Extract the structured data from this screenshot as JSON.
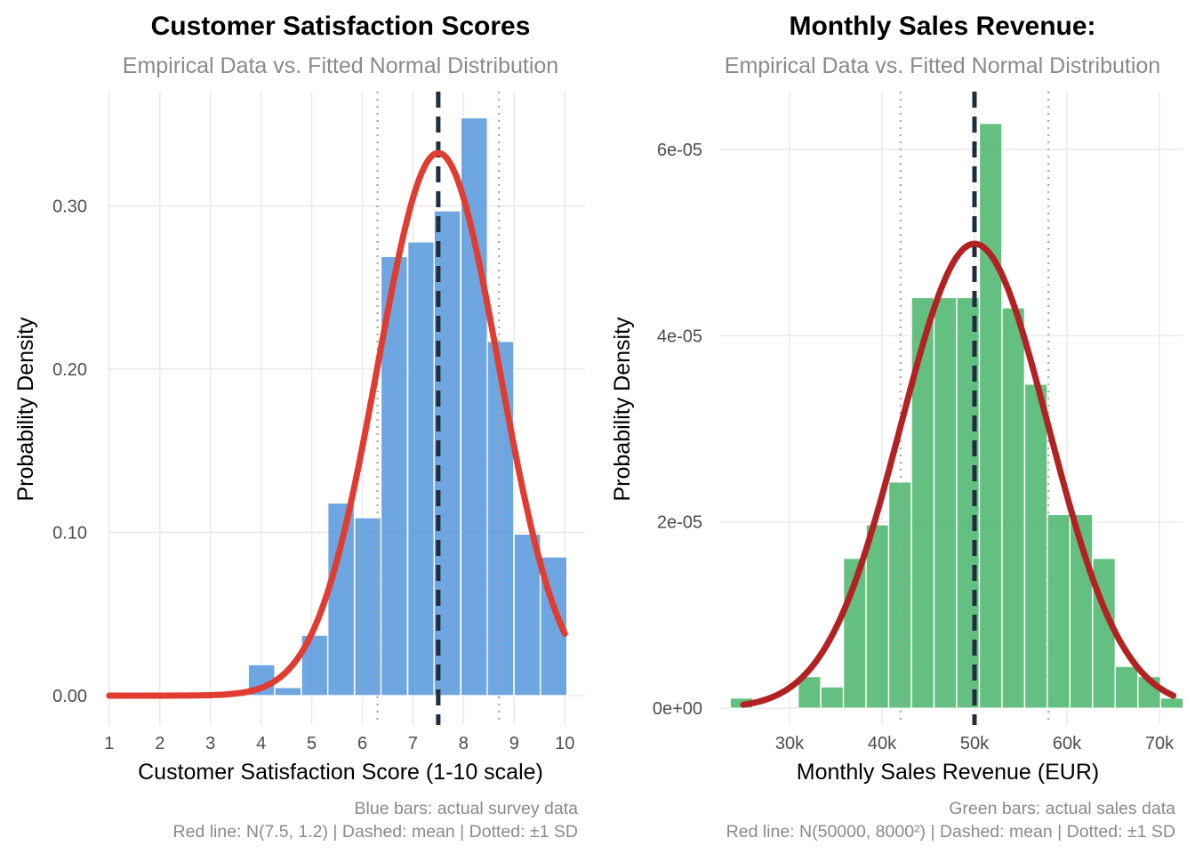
{
  "chart_data": [
    {
      "type": "bar",
      "title": "Customer Satisfaction Scores",
      "subtitle": "Empirical Data vs. Fitted Normal Distribution",
      "xlabel": "Customer Satisfaction Score (1-10 scale)",
      "ylabel": "Probability Density",
      "xlim": [
        0.95,
        10.4
      ],
      "ylim": [
        -0.018,
        0.37
      ],
      "x_ticks": [
        1,
        2,
        3,
        4,
        5,
        6,
        7,
        8,
        9,
        10
      ],
      "x_tick_labels": [
        "1",
        "2",
        "3",
        "4",
        "5",
        "6",
        "7",
        "8",
        "9",
        "10"
      ],
      "y_ticks": [
        0,
        0.1,
        0.2,
        0.3
      ],
      "y_tick_labels": [
        "0.00",
        "0.10",
        "0.20",
        "0.30"
      ],
      "bin_width": 0.525,
      "bar_color": "#4a90d9",
      "curve_color": "#e03c31",
      "bins": [
        {
          "center": 4.01,
          "density": 0.019
        },
        {
          "center": 4.53,
          "density": 0.005
        },
        {
          "center": 5.06,
          "density": 0.037
        },
        {
          "center": 5.58,
          "density": 0.118
        },
        {
          "center": 6.11,
          "density": 0.109
        },
        {
          "center": 6.63,
          "density": 0.269
        },
        {
          "center": 7.16,
          "density": 0.278
        },
        {
          "center": 7.68,
          "density": 0.297
        },
        {
          "center": 8.21,
          "density": 0.354
        },
        {
          "center": 8.73,
          "density": 0.217
        },
        {
          "center": 9.26,
          "density": 0.099
        },
        {
          "center": 9.78,
          "density": 0.085
        }
      ],
      "normal_fit": {
        "mean": 7.5,
        "sd": 1.2,
        "x_from": 1,
        "x_to": 10
      },
      "mean_line": 7.5,
      "sd_lines": [
        6.3,
        8.7
      ],
      "caption": [
        "Blue bars: actual survey data",
        "Red line: N(7.5, 1.2) | Dashed: mean | Dotted: ±1 SD"
      ]
    },
    {
      "type": "bar",
      "title": "Monthly Sales Revenue:",
      "subtitle": "Empirical Data vs. Fitted Normal Distribution",
      "xlabel": "Monthly Sales Revenue (EUR)",
      "ylabel": "Probability Density",
      "xlim": [
        22500,
        72500
      ],
      "ylim": [
        -1.8e-06,
        6.62e-05
      ],
      "x_ticks": [
        30000,
        40000,
        50000,
        60000,
        70000
      ],
      "x_tick_labels": [
        "30k",
        "40k",
        "50k",
        "60k",
        "70k"
      ],
      "y_ticks": [
        0,
        2e-05,
        4e-05,
        6e-05
      ],
      "y_tick_labels": [
        "0e+00",
        "2e-05",
        "4e-05",
        "6e-05"
      ],
      "bin_width": 2450,
      "bar_color": "#3cb062",
      "curve_color": "#b22222",
      "bins": [
        {
          "center": 24800,
          "density": 1.1e-06
        },
        {
          "center": 29700,
          "density": 0.0
        },
        {
          "center": 32150,
          "density": 3.4e-06
        },
        {
          "center": 34600,
          "density": 2.3e-06
        },
        {
          "center": 37050,
          "density": 1.61e-05
        },
        {
          "center": 39500,
          "density": 1.97e-05
        },
        {
          "center": 41950,
          "density": 2.43e-05
        },
        {
          "center": 44400,
          "density": 4.41e-05
        },
        {
          "center": 46850,
          "density": 4.41e-05
        },
        {
          "center": 49300,
          "density": 4.41e-05
        },
        {
          "center": 51750,
          "density": 6.28e-05
        },
        {
          "center": 54200,
          "density": 4.3e-05
        },
        {
          "center": 56650,
          "density": 3.48e-05
        },
        {
          "center": 59100,
          "density": 2.08e-05
        },
        {
          "center": 61550,
          "density": 2.08e-05
        },
        {
          "center": 64000,
          "density": 1.61e-05
        },
        {
          "center": 66450,
          "density": 4.5e-06
        },
        {
          "center": 68900,
          "density": 3.4e-06
        },
        {
          "center": 71350,
          "density": 1.1e-06
        }
      ],
      "normal_fit": {
        "mean": 50000,
        "sd": 8000,
        "x_from": 25000,
        "x_to": 71500
      },
      "mean_line": 50000,
      "sd_lines": [
        42000,
        58000
      ],
      "caption": [
        "Green bars: actual sales data",
        "Red line: N(50000, 8000²) | Dashed: mean | Dotted: ±1 SD"
      ]
    }
  ]
}
